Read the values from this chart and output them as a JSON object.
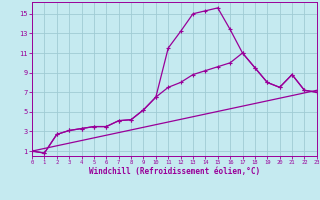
{
  "background_color": "#c5eaf0",
  "grid_color": "#a0ccd4",
  "line_color": "#990099",
  "xlabel": "Windchill (Refroidissement éolien,°C)",
  "xlim": [
    0,
    23
  ],
  "ylim": [
    0.5,
    16.2
  ],
  "xticks": [
    0,
    1,
    2,
    3,
    4,
    5,
    6,
    7,
    8,
    9,
    10,
    11,
    12,
    13,
    14,
    15,
    16,
    17,
    18,
    19,
    20,
    21,
    22,
    23
  ],
  "yticks": [
    1,
    3,
    5,
    7,
    9,
    11,
    13,
    15
  ],
  "curve1_x": [
    0,
    1,
    2,
    3,
    4,
    5,
    6,
    7,
    8,
    9,
    10,
    11,
    12,
    13,
    14,
    15,
    16,
    17,
    18,
    19,
    20,
    21,
    22,
    23
  ],
  "curve1_y": [
    1.0,
    0.8,
    2.7,
    3.1,
    3.3,
    3.5,
    3.5,
    4.1,
    4.2,
    5.2,
    6.5,
    11.5,
    13.2,
    15.0,
    15.3,
    15.6,
    13.4,
    11.0,
    9.5,
    8.0,
    7.5,
    8.8,
    7.2,
    7.0
  ],
  "curve2_x": [
    0,
    1,
    2,
    3,
    4,
    5,
    6,
    7,
    8,
    9,
    10,
    11,
    12,
    13,
    14,
    15,
    16,
    17,
    18,
    19,
    20,
    21,
    22,
    23
  ],
  "curve2_y": [
    1.0,
    0.8,
    2.7,
    3.1,
    3.3,
    3.5,
    3.5,
    4.1,
    4.2,
    5.2,
    6.5,
    7.5,
    8.0,
    8.8,
    9.2,
    9.6,
    10.0,
    11.0,
    9.5,
    8.0,
    7.5,
    8.8,
    7.2,
    7.0
  ],
  "line3_x": [
    0,
    23
  ],
  "line3_y": [
    1.0,
    7.2
  ],
  "xtick_fontsize": 4.0,
  "ytick_fontsize": 5.0,
  "xlabel_fontsize": 5.5
}
